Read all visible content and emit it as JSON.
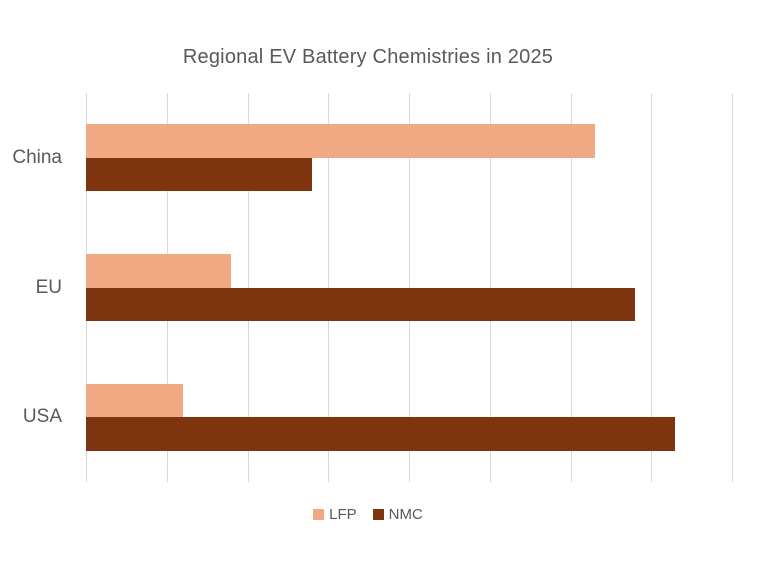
{
  "chart_data": {
    "type": "bar",
    "orientation": "horizontal",
    "title": "Regional EV Battery Chemistries in 2025",
    "categories": [
      "China",
      "EU",
      "USA"
    ],
    "series": [
      {
        "name": "LFP",
        "color": "#F1A983",
        "values": [
          63,
          18,
          12
        ]
      },
      {
        "name": "NMC",
        "color": "#7D340F",
        "values": [
          28,
          68,
          73
        ]
      }
    ],
    "xlabel": "",
    "ylabel": "",
    "xlim": [
      0,
      80
    ],
    "gridline_step": 10,
    "grid": true,
    "tick_labels_visible": false,
    "legend_position": "bottom",
    "colors": {
      "gridline": "#D9D9D9",
      "text": "#595959",
      "background": "#FFFFFF"
    }
  }
}
